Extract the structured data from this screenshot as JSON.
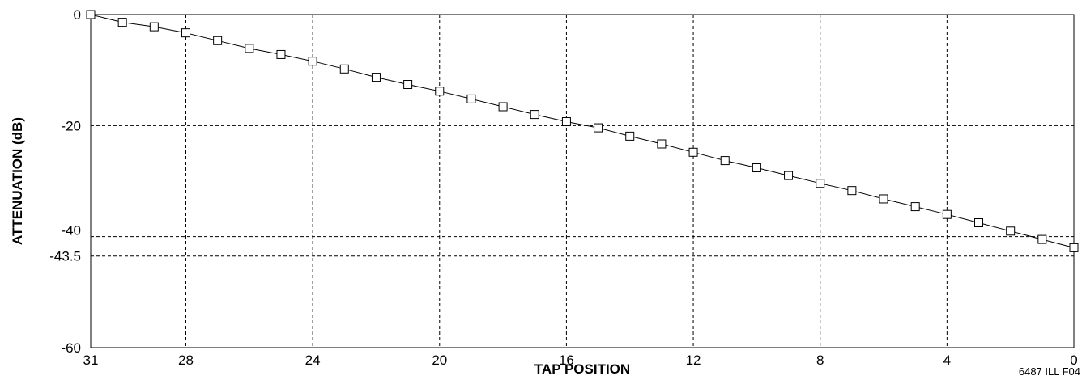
{
  "chart_data": {
    "type": "line",
    "title": "",
    "xlabel": "TAP POSITION",
    "ylabel": "ATTENUATION (dB)",
    "x_reversed": true,
    "xlim": [
      31,
      0
    ],
    "ylim": [
      -60,
      0
    ],
    "x_ticks": [
      31,
      28,
      24,
      20,
      16,
      12,
      8,
      4,
      0
    ],
    "y_ticks": [
      0,
      -20,
      -40,
      -43.5,
      -60
    ],
    "vertical_gridlines_at": [
      28,
      24,
      20,
      16,
      12,
      8,
      4
    ],
    "horizontal_gridlines_at": [
      -20,
      -40,
      -43.5
    ],
    "grid": "dashed",
    "marker": "open-square",
    "line_color": "#000000",
    "series": [
      {
        "name": "",
        "x": [
          31,
          30,
          29,
          28,
          27,
          26,
          25,
          24,
          23,
          22,
          21,
          20,
          19,
          18,
          17,
          16,
          15,
          14,
          13,
          12,
          11,
          10,
          9,
          8,
          7,
          6,
          5,
          4,
          3,
          2,
          1,
          0
        ],
        "values": [
          0,
          -1.4,
          -2.2,
          -3.3,
          -4.7,
          -6.1,
          -7.2,
          -8.4,
          -9.8,
          -11.3,
          -12.6,
          -13.8,
          -15.2,
          -16.6,
          -18.0,
          -19.3,
          -20.4,
          -21.9,
          -23.3,
          -24.8,
          -26.3,
          -27.6,
          -29.0,
          -30.4,
          -31.7,
          -33.2,
          -34.6,
          -36.0,
          -37.5,
          -39.0,
          -40.5,
          -42.0
        ]
      }
    ]
  },
  "footer": {
    "figure_id": "6487 ILL F04"
  }
}
